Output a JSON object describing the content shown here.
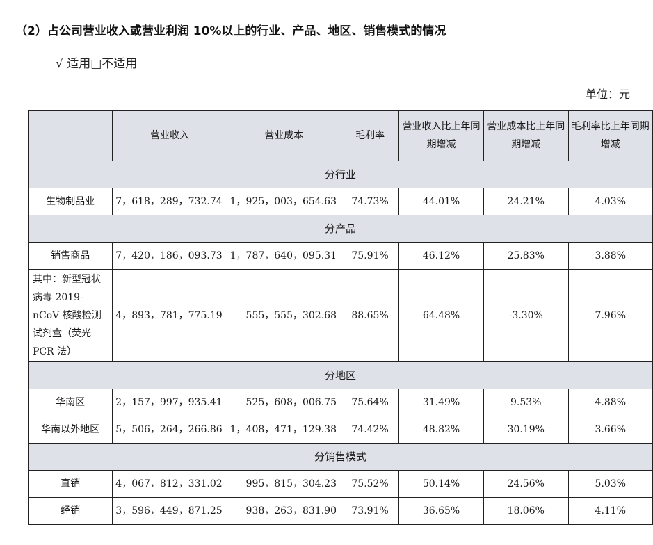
{
  "heading": "（2）占公司营业收入或营业利润 10%以上的行业、产品、地区、销售模式的情况",
  "applicable": "√ 适用□不适用",
  "unit": "单位：元",
  "table": {
    "headers": {
      "blank": "",
      "revenue": "营业收入",
      "cost": "营业成本",
      "margin": "毛利率",
      "revenue_change": "营业收入比上年同期增减",
      "cost_change": "营业成本比上年同期增减",
      "margin_change": "毛利率比上年同期增减"
    },
    "sections": [
      {
        "title": "分行业",
        "rows": [
          {
            "name": "生物制品业",
            "revenue": "7，618，289，732.74",
            "cost": "1，925，003，654.63",
            "margin": "74.73%",
            "revenue_change": "44.01%",
            "cost_change": "24.21%",
            "margin_change": "4.03%"
          }
        ]
      },
      {
        "title": "分产品",
        "rows": [
          {
            "name": "销售商品",
            "revenue": "7，420，186，093.73",
            "cost": "1，787，640，095.31",
            "margin": "75.91%",
            "revenue_change": "46.12%",
            "cost_change": "25.83%",
            "margin_change": "3.88%"
          },
          {
            "name": "其中：新型冠状病毒 2019-nCoV 核酸检测试剂盒（荧光 PCR 法）",
            "revenue": "4，893，781，775.19",
            "cost": "555，555，302.68",
            "margin": "88.65%",
            "revenue_change": "64.48%",
            "cost_change": "-3.30%",
            "margin_change": "7.96%"
          }
        ]
      },
      {
        "title": "分地区",
        "rows": [
          {
            "name": "华南区",
            "revenue": "2，157，997，935.41",
            "cost": "525，608，006.75",
            "margin": "75.64%",
            "revenue_change": "31.49%",
            "cost_change": "9.53%",
            "margin_change": "4.88%"
          },
          {
            "name": "华南以外地区",
            "revenue": "5，506，264，266.86",
            "cost": "1，408，471，129.38",
            "margin": "74.42%",
            "revenue_change": "48.82%",
            "cost_change": "30.19%",
            "margin_change": "3.66%"
          }
        ]
      },
      {
        "title": "分销售模式",
        "rows": [
          {
            "name": "直销",
            "revenue": "4，067，812，331.02",
            "cost": "995，815，304.23",
            "margin": "75.52%",
            "revenue_change": "50.14%",
            "cost_change": "24.56%",
            "margin_change": "5.03%"
          },
          {
            "name": "经销",
            "revenue": "3，596，449，871.25",
            "cost": "938，263，831.90",
            "margin": "73.91%",
            "revenue_change": "36.65%",
            "cost_change": "18.06%",
            "margin_change": "4.11%"
          }
        ]
      }
    ]
  }
}
